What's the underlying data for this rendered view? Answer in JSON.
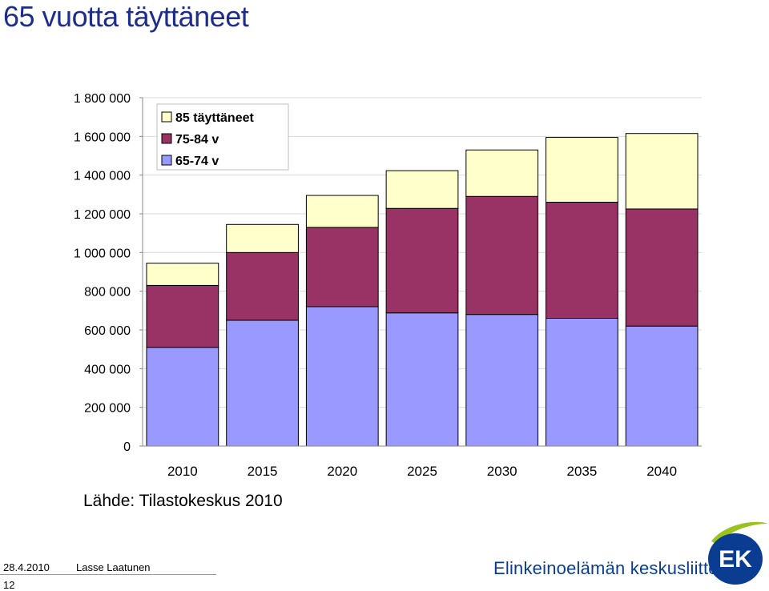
{
  "page": {
    "title": "65 vuotta täyttäneet",
    "source": "Lähde: Tilastokeskus 2010",
    "footer": {
      "date": "28.4.2010",
      "author": "Lasse Laatunen",
      "page_number": "12"
    },
    "organization": "Elinkeinoelämän keskusliitto",
    "logo_text": "EK"
  },
  "colors": {
    "series_65_74": "#9999ff",
    "series_75_84": "#993366",
    "series_85": "#ffffcc",
    "title": "#1f2d8a",
    "org": "#0a3d91",
    "logo_green": "#9ac31c",
    "logo_blue": "#0a3d91"
  },
  "chart_data": {
    "type": "bar",
    "stacked": true,
    "categories": [
      "2010",
      "2015",
      "2020",
      "2025",
      "2030",
      "2035",
      "2040"
    ],
    "series": [
      {
        "name": "65-74 v",
        "values": [
          510000,
          650000,
          720000,
          688000,
          680000,
          660000,
          620000
        ]
      },
      {
        "name": "75-84 v",
        "values": [
          320000,
          350000,
          410000,
          540000,
          610000,
          600000,
          605000
        ]
      },
      {
        "name": "85 täyttäneet",
        "values": [
          115000,
          145000,
          165000,
          195000,
          240000,
          335000,
          390000
        ]
      }
    ],
    "legend_order": [
      "85 täyttäneet",
      "75-84 v",
      "65-74 v"
    ],
    "y_ticks": [
      "0",
      "200 000",
      "400 000",
      "600 000",
      "800 000",
      "1 000 000",
      "1 200 000",
      "1 400 000",
      "1 600 000",
      "1 800 000"
    ],
    "ylim": [
      0,
      1800000
    ],
    "grid": true,
    "legend_position": "top-left"
  }
}
